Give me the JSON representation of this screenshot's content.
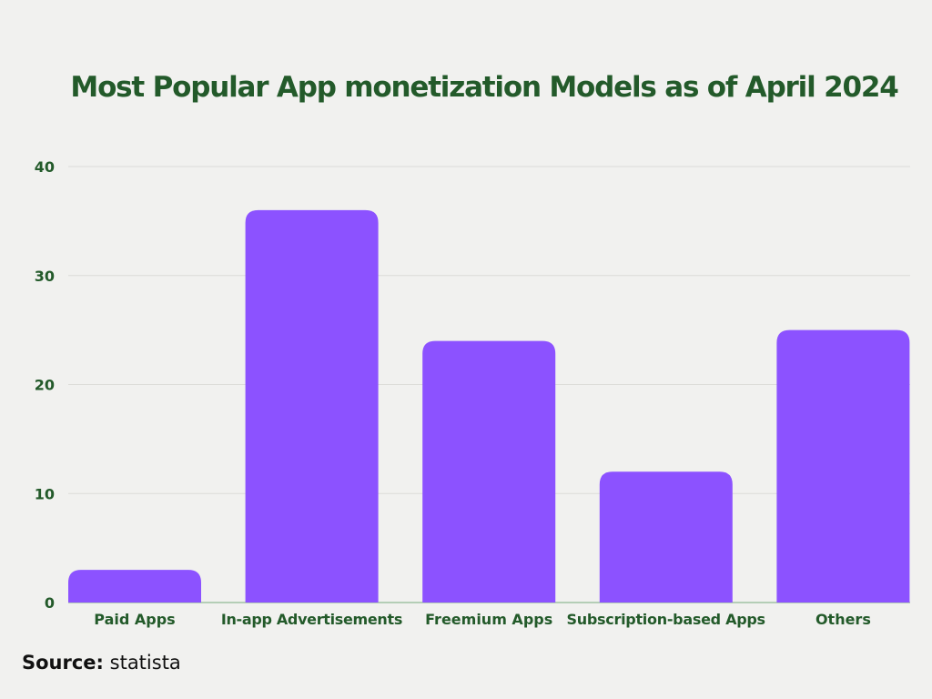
{
  "chart_data": {
    "type": "bar",
    "title": "Most Popular App monetization Models as of April 2024",
    "categories": [
      "Paid Apps",
      "In-app Advertisements",
      "Freemium Apps",
      "Subscription-based Apps",
      "Others"
    ],
    "values": [
      3,
      36,
      24,
      12,
      25
    ],
    "xlabel": "",
    "ylabel": "",
    "ylim": [
      0,
      40
    ],
    "yticks": [
      0,
      10,
      20,
      30,
      40
    ],
    "grid": true,
    "colors": {
      "bar": "#8c52ff",
      "text": "#235a2a",
      "grid": "#dcdcd8"
    }
  },
  "source": {
    "label": "Source:",
    "value": "statista"
  }
}
